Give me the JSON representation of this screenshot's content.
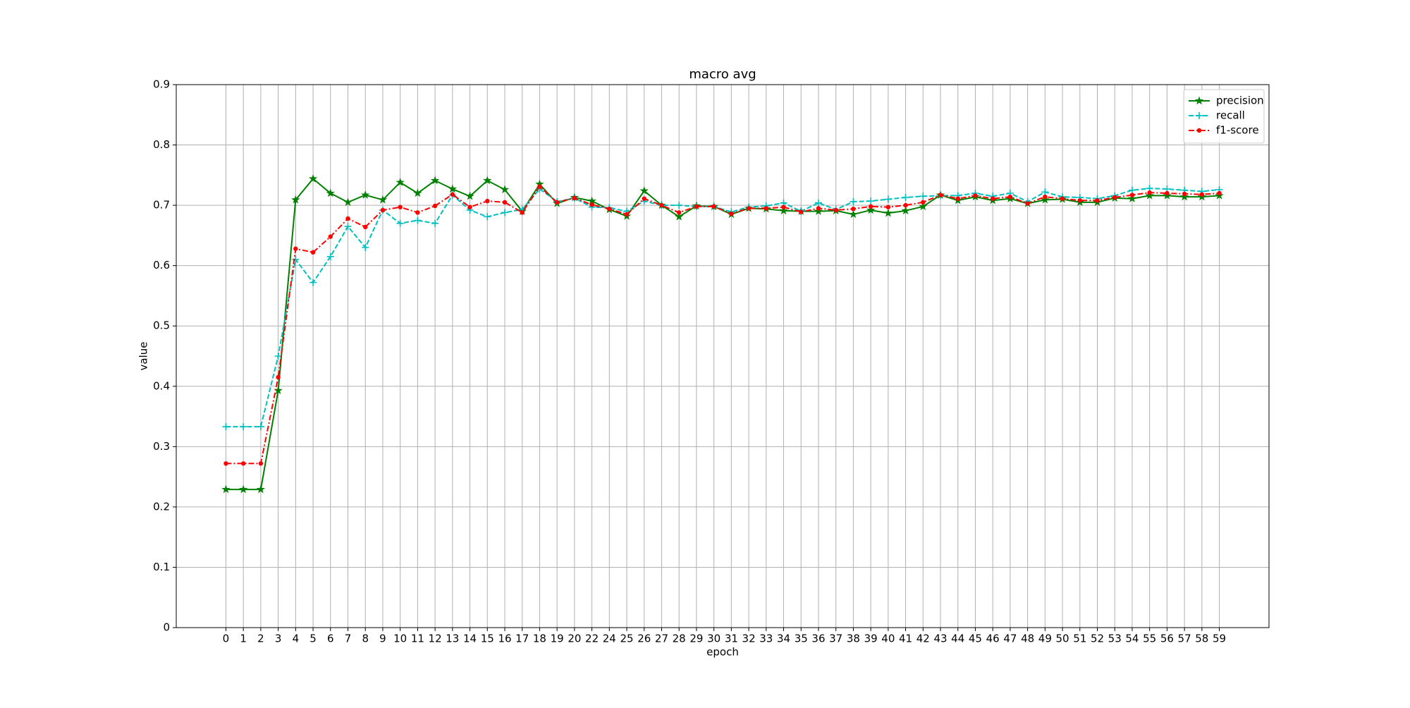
{
  "chart_data": {
    "type": "line",
    "title": "macro avg",
    "x_label": "epoch",
    "y_label": "value",
    "categories": [
      "0",
      "1",
      "2",
      "3",
      "4",
      "5",
      "6",
      "7",
      "8",
      "9",
      "10",
      "11",
      "12",
      "13",
      "14",
      "15",
      "16",
      "17",
      "18",
      "19",
      "20",
      "22",
      "24",
      "25",
      "26",
      "27",
      "28",
      "29",
      "30",
      "31",
      "32",
      "33",
      "34",
      "35",
      "36",
      "37",
      "38",
      "39",
      "40",
      "41",
      "42",
      "43",
      "44",
      "45",
      "46",
      "47",
      "48",
      "49",
      "50",
      "51",
      "52",
      "53",
      "54",
      "55",
      "56",
      "57",
      "58",
      "59"
    ],
    "series": [
      {
        "name": "precision",
        "color": "#008000",
        "linestyle": "solid",
        "marker": "star",
        "values": [
          0.229,
          0.229,
          0.229,
          0.393,
          0.709,
          0.744,
          0.72,
          0.705,
          0.717,
          0.709,
          0.738,
          0.72,
          0.741,
          0.727,
          0.715,
          0.741,
          0.726,
          0.69,
          0.735,
          0.703,
          0.713,
          0.707,
          0.693,
          0.682,
          0.724,
          0.7,
          0.681,
          0.699,
          0.698,
          0.685,
          0.695,
          0.694,
          0.691,
          0.69,
          0.69,
          0.691,
          0.685,
          0.692,
          0.687,
          0.691,
          0.698,
          0.717,
          0.708,
          0.714,
          0.708,
          0.711,
          0.703,
          0.709,
          0.71,
          0.705,
          0.705,
          0.712,
          0.711,
          0.716,
          0.716,
          0.714,
          0.714,
          0.716
        ]
      },
      {
        "name": "recall",
        "color": "#00bfbf",
        "linestyle": "dashed",
        "marker": "plus",
        "values": [
          0.333,
          0.333,
          0.333,
          0.45,
          0.61,
          0.572,
          0.615,
          0.665,
          0.63,
          0.692,
          0.67,
          0.675,
          0.67,
          0.717,
          0.692,
          0.681,
          0.688,
          0.693,
          0.727,
          0.706,
          0.712,
          0.697,
          0.696,
          0.69,
          0.707,
          0.7,
          0.7,
          0.698,
          0.698,
          0.689,
          0.697,
          0.699,
          0.704,
          0.69,
          0.704,
          0.693,
          0.706,
          0.707,
          0.71,
          0.713,
          0.715,
          0.716,
          0.716,
          0.72,
          0.715,
          0.72,
          0.706,
          0.722,
          0.714,
          0.713,
          0.711,
          0.716,
          0.725,
          0.728,
          0.727,
          0.725,
          0.723,
          0.726
        ]
      },
      {
        "name": "f1-score",
        "color": "#ff0000",
        "linestyle": "dashdot",
        "marker": "dot",
        "values": [
          0.272,
          0.272,
          0.272,
          0.415,
          0.628,
          0.622,
          0.648,
          0.678,
          0.664,
          0.692,
          0.697,
          0.688,
          0.699,
          0.718,
          0.697,
          0.707,
          0.705,
          0.688,
          0.731,
          0.705,
          0.712,
          0.701,
          0.694,
          0.685,
          0.711,
          0.7,
          0.688,
          0.698,
          0.698,
          0.686,
          0.695,
          0.695,
          0.697,
          0.689,
          0.695,
          0.692,
          0.694,
          0.698,
          0.697,
          0.7,
          0.705,
          0.717,
          0.711,
          0.716,
          0.711,
          0.714,
          0.703,
          0.714,
          0.711,
          0.708,
          0.708,
          0.713,
          0.717,
          0.721,
          0.72,
          0.719,
          0.718,
          0.72
        ]
      }
    ],
    "ylim": [
      0,
      0.9
    ],
    "yticks": [
      0,
      0.1,
      0.2,
      0.3,
      0.4,
      0.5,
      0.6,
      0.7,
      0.8,
      0.9
    ],
    "grid": true,
    "legend": "upper right"
  }
}
